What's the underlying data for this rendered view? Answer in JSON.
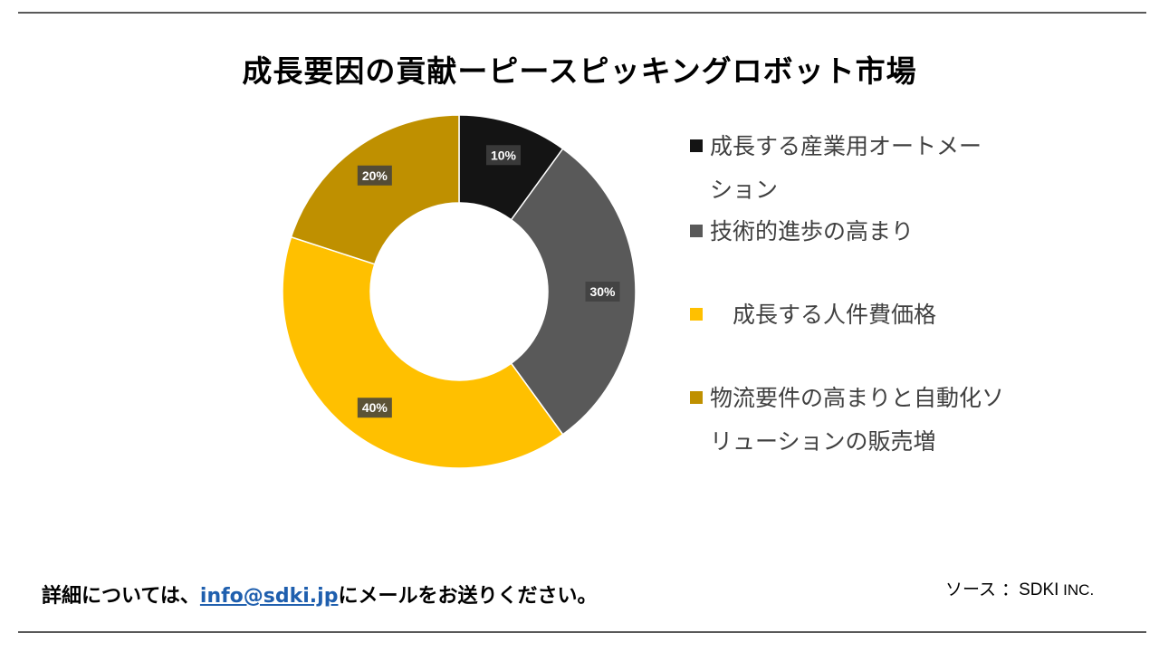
{
  "title": "成長要因の貢献ーピースピッキングロボット市場",
  "chart_data": {
    "type": "pie",
    "donut": true,
    "title": "成長要因の貢献ーピースピッキングロボット市場",
    "legend_position": "right",
    "slices": [
      {
        "label": "成長する産業用オートメーション",
        "value": 10,
        "data_label": "10%",
        "color": "#141414"
      },
      {
        "label": "技術的進歩の高まり",
        "value": 30,
        "data_label": "30%",
        "color": "#595959"
      },
      {
        "label": "成長する人件費価格",
        "value": 40,
        "data_label": "40%",
        "color": "#ffc000"
      },
      {
        "label": "物流要件の高まりと自動化ソリューションの販売増",
        "value": 20,
        "data_label": "20%",
        "color": "#bf9000"
      }
    ]
  },
  "legend": {
    "items": [
      {
        "line1": "成長する産業用オートメー",
        "line2": "ション",
        "color": "#141414"
      },
      {
        "line1": "技術的進歩の高まり",
        "line2": "",
        "color": "#595959"
      },
      {
        "line1": "　成長する人件費価格",
        "line2": "",
        "color": "#ffc000"
      },
      {
        "line1": "物流要件の高まりと自動化ソ",
        "line2": "リューションの販売増",
        "color": "#bf9000"
      }
    ]
  },
  "footer": {
    "prefix": "詳細については、",
    "email": "info@sdki.jp",
    "suffix": "にメールをお送りください。",
    "source_label": "ソース ：",
    "source_brand": "SDKI",
    "source_inc": " INC."
  }
}
